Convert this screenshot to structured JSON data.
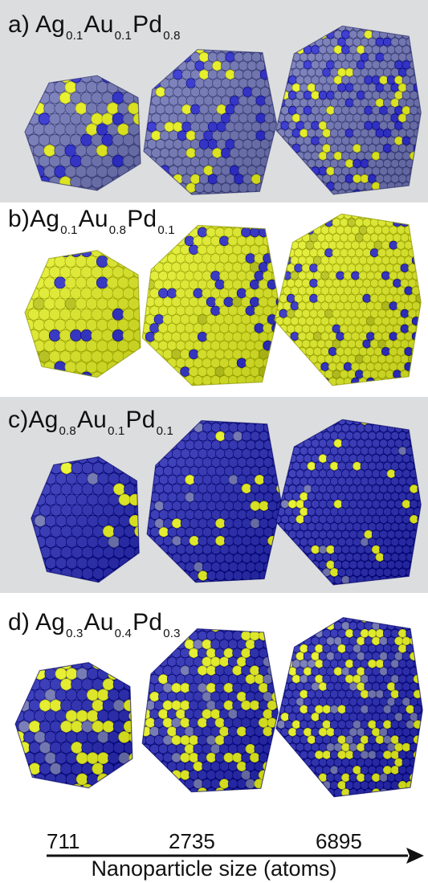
{
  "panels": [
    {
      "id": "a",
      "prefix": "a) ",
      "elements": [
        {
          "symbol": "Ag",
          "fraction": "0.1"
        },
        {
          "symbol": "Au",
          "fraction": "0.1"
        },
        {
          "symbol": "Pd",
          "fraction": "0.8"
        }
      ],
      "background": "#dcdddf",
      "base_color": "#6c70a8",
      "dot_colors": [
        "#2f2fc0",
        "#d8e020"
      ],
      "dot_density": 0.25
    },
    {
      "id": "b",
      "prefix": "b)",
      "elements": [
        {
          "symbol": "Ag",
          "fraction": "0.1"
        },
        {
          "symbol": "Au",
          "fraction": "0.8"
        },
        {
          "symbol": "Pd",
          "fraction": "0.1"
        }
      ],
      "background": "#ffffff",
      "base_color": "#cfd92a",
      "dot_colors": [
        "#3030b8",
        "#aeb81c"
      ],
      "dot_density": 0.18
    },
    {
      "id": "c",
      "prefix": "c)",
      "elements": [
        {
          "symbol": "Ag",
          "fraction": "0.8"
        },
        {
          "symbol": "Au",
          "fraction": "0.1"
        },
        {
          "symbol": "Pd",
          "fraction": "0.1"
        }
      ],
      "background": "#dcdddf",
      "base_color": "#2d2fa6",
      "dot_colors": [
        "#d9e125",
        "#6a6ea6"
      ],
      "dot_density": 0.08
    },
    {
      "id": "d",
      "prefix": "d) ",
      "elements": [
        {
          "symbol": "Ag",
          "fraction": "0.3"
        },
        {
          "symbol": "Au",
          "fraction": "0.4"
        },
        {
          "symbol": "Pd",
          "fraction": "0.3"
        }
      ],
      "background": "#ffffff",
      "base_color": "#2a2ca6",
      "dot_colors": [
        "#d5de22",
        "#6a6ea6"
      ],
      "dot_density": 0.38
    }
  ],
  "sizes": [
    "711",
    "2735",
    "6895"
  ],
  "axis_title": "Nanoparticle size (atoms)"
}
